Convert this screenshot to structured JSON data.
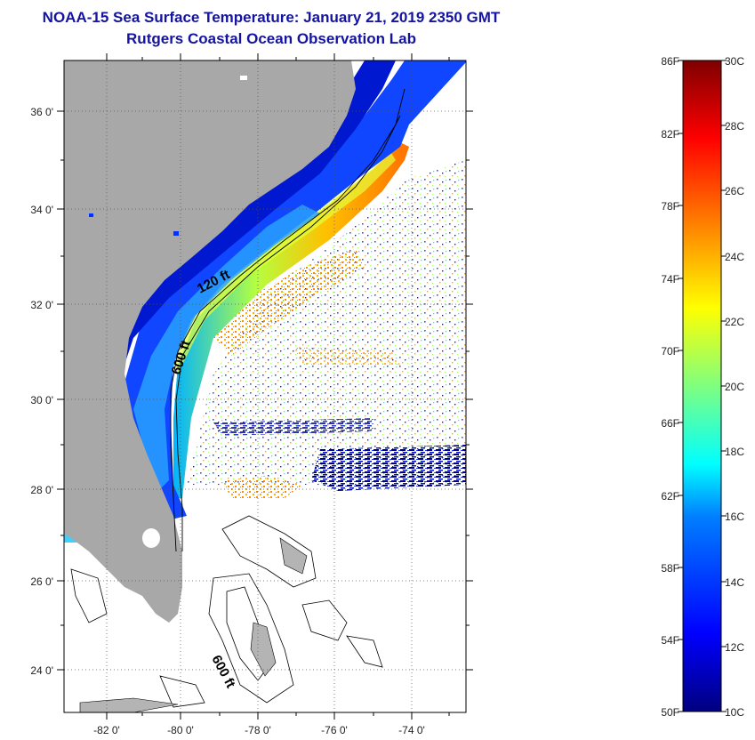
{
  "title": "NOAA-15 Sea Surface Temperature:  January 21, 2019 2350 GMT",
  "subtitle": "Rutgers Coastal Ocean Observation Lab",
  "map": {
    "lat_labels": [
      "36 0'",
      "34 0'",
      "32 0'",
      "30 0'",
      "28 0'",
      "26 0'",
      "24 0'"
    ],
    "lon_labels": [
      "-82 0'",
      "-80 0'",
      "-78 0'",
      "-76 0'",
      "-74 0'"
    ],
    "contour_labels": [
      "120 ft",
      "600 ft",
      "600 ft"
    ],
    "colors": {
      "land": "#a8a8a8",
      "bahamas_land": "#b4b4b4",
      "frame": "#000000"
    }
  },
  "colorbar": {
    "fahrenheit_labels": [
      "86F",
      "82F",
      "78F",
      "74F",
      "70F",
      "66F",
      "62F",
      "58F",
      "54F",
      "50F"
    ],
    "celsius_labels": [
      "30C",
      "28C",
      "26C",
      "24C",
      "22C",
      "20C",
      "18C",
      "16C",
      "14C",
      "12C",
      "10C"
    ],
    "range_c": [
      10,
      30
    ]
  }
}
